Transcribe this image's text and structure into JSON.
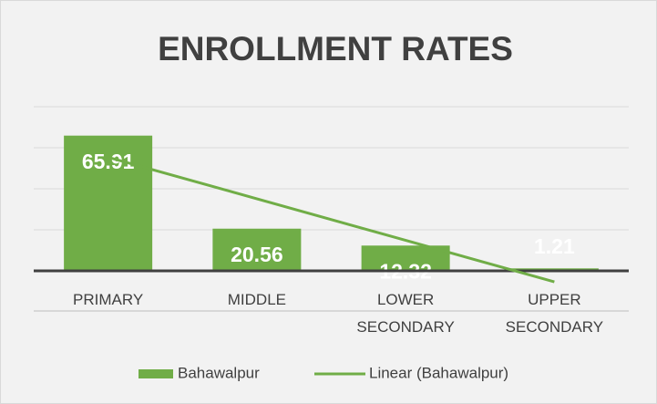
{
  "chart_data": {
    "type": "bar",
    "title": "ENROLLMENT RATES",
    "categories": [
      "PRIMARY",
      "MIDDLE",
      "LOWER SECONDARY",
      "UPPER SECONDARY"
    ],
    "series": [
      {
        "name": "Bahawalpur",
        "color": "#70ad47",
        "values": [
          65.91,
          20.56,
          12.32,
          1.21
        ]
      }
    ],
    "trendline": {
      "name": "Linear (Bahawalpur)",
      "type": "linear",
      "color": "#70ad47"
    },
    "ylim": [
      0,
      80
    ],
    "yticks": [
      0,
      20,
      40,
      60,
      80
    ],
    "grid": true
  }
}
